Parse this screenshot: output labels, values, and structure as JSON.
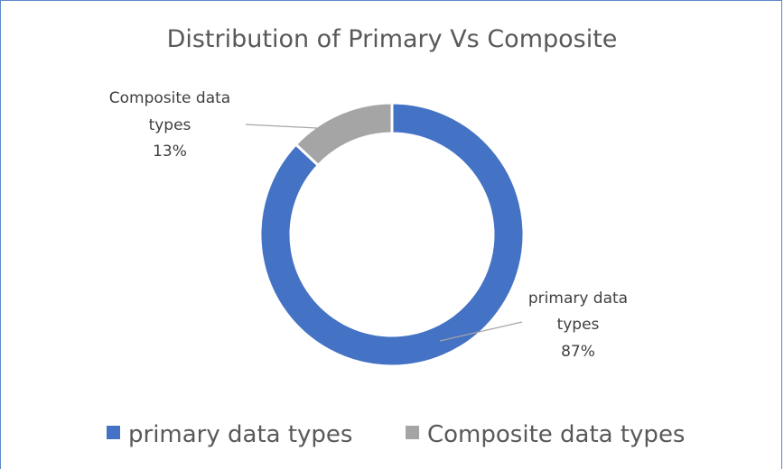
{
  "chart_data": {
    "type": "pie",
    "variant": "doughnut",
    "title": "Distribution of Primary Vs Composite",
    "categories": [
      "primary data types",
      "Composite data types"
    ],
    "values": [
      87,
      13
    ],
    "data_labels": [
      {
        "line1": "primary data",
        "line2": "types",
        "line3": "87%"
      },
      {
        "line1": "Composite data",
        "line2": "types",
        "line3": "13%"
      }
    ],
    "colors": [
      "#4472c4",
      "#a5a5a5"
    ],
    "legend": {
      "placement": "bottom",
      "entries": [
        "primary data types",
        "Composite data types"
      ]
    }
  }
}
